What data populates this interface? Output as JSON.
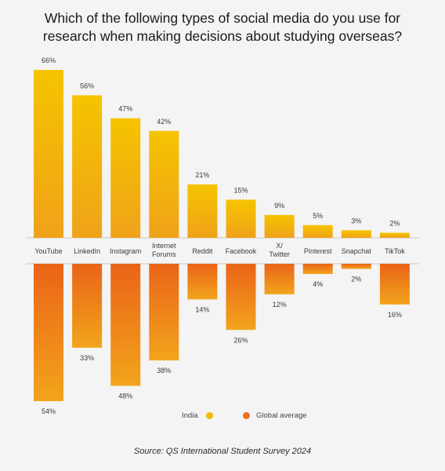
{
  "title_lines": [
    "Which of the following types of social media do you use for",
    "research when making decisions about studying overseas?"
  ],
  "legend": {
    "india_label": "India",
    "global_label": "Global average"
  },
  "source": "Source: QS International Student Survey 2024",
  "colors": {
    "india_top": "#f5c400",
    "india_bottom": "#f0a21a",
    "global_top": "#ea6418",
    "global_bottom": "#f2a41c",
    "legend_india": "#f2b800",
    "legend_global": "#ec7020",
    "baseline": "#c8c8c8"
  },
  "chart_data": {
    "type": "bar",
    "categories": [
      [
        "YouTube"
      ],
      [
        "LinkedIn"
      ],
      [
        "Instagram"
      ],
      [
        "Internet",
        "Forums"
      ],
      [
        "Reddit"
      ],
      [
        "Facebook"
      ],
      [
        "X/",
        "Twitter"
      ],
      [
        "Pinterest"
      ],
      [
        "Snapchat"
      ],
      [
        "TikTok"
      ]
    ],
    "series": [
      {
        "name": "India",
        "values": [
          66,
          56,
          47,
          42,
          21,
          15,
          9,
          5,
          3,
          2
        ]
      },
      {
        "name": "Global average",
        "values": [
          54,
          33,
          48,
          38,
          14,
          26,
          12,
          4,
          2,
          16
        ]
      }
    ],
    "value_suffix": "%",
    "layout": "mirrored",
    "grid": false,
    "legend_position": "bottom-center"
  }
}
